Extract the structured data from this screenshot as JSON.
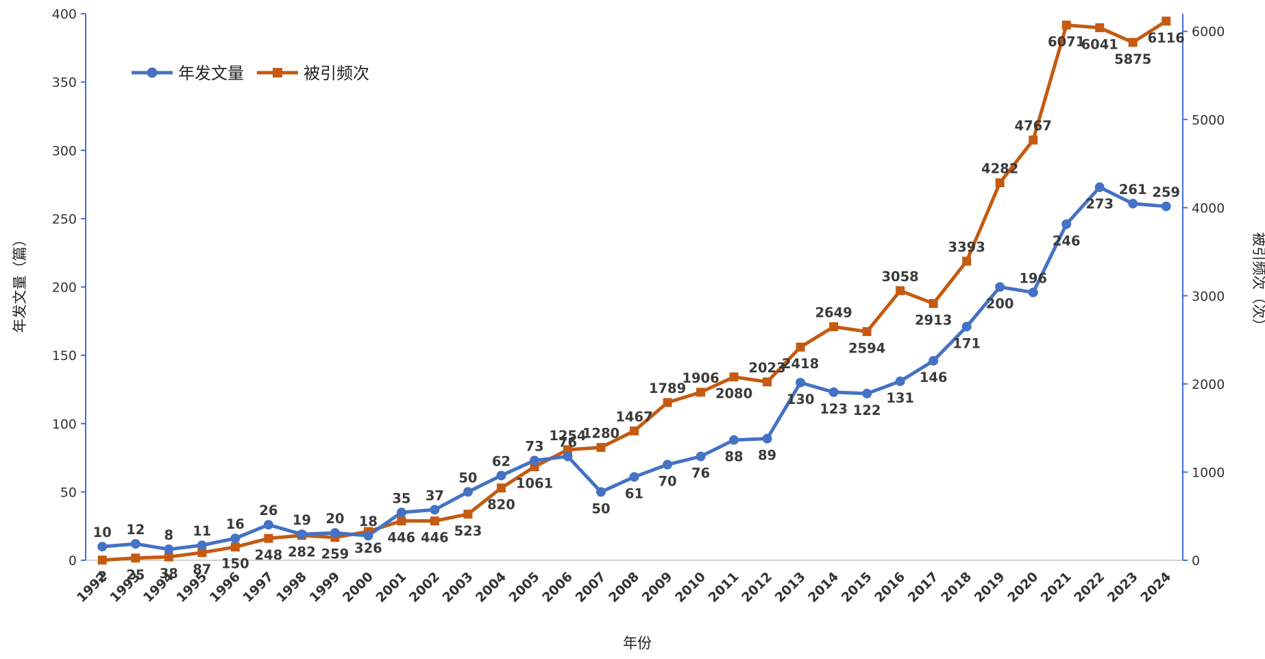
{
  "chart_data": {
    "type": "line",
    "title": "",
    "xlabel": "年份",
    "ylabel_left": "年发文量（篇）",
    "ylabel_right": "被引频次（次）",
    "ylim_left": [
      0,
      400
    ],
    "yticks_left": [
      0,
      50,
      100,
      150,
      200,
      250,
      300,
      350,
      400
    ],
    "ylim_right": [
      0,
      6200
    ],
    "yticks_right": [
      0,
      1000,
      2000,
      3000,
      4000,
      5000,
      6000
    ],
    "legend_position": "top-left",
    "categories": [
      "1992",
      "1993",
      "1994",
      "1995",
      "1996",
      "1997",
      "1998",
      "1999",
      "2000",
      "2001",
      "2002",
      "2003",
      "2004",
      "2005",
      "2006",
      "2007",
      "2008",
      "2009",
      "2010",
      "2011",
      "2012",
      "2013",
      "2014",
      "2015",
      "2016",
      "2017",
      "2018",
      "2019",
      "2020",
      "2021",
      "2022",
      "2023",
      "2024"
    ],
    "series": [
      {
        "name": "年发文量",
        "axis": "left",
        "color": "#4472c4",
        "marker": "circle",
        "values": [
          10,
          12,
          8,
          11,
          16,
          26,
          19,
          20,
          18,
          35,
          37,
          50,
          62,
          73,
          76,
          50,
          61,
          70,
          76,
          88,
          89,
          130,
          123,
          122,
          131,
          146,
          171,
          200,
          196,
          246,
          273,
          261,
          259
        ]
      },
      {
        "name": "被引频次",
        "axis": "right",
        "color": "#c55a11",
        "marker": "square",
        "values": [
          2,
          25,
          38,
          87,
          150,
          248,
          282,
          259,
          326,
          446,
          446,
          523,
          820,
          1061,
          1254,
          1280,
          1467,
          1789,
          1906,
          2080,
          2023,
          2418,
          2649,
          2594,
          3058,
          2913,
          3393,
          4282,
          4767,
          6071,
          6041,
          5875,
          6116
        ]
      }
    ]
  }
}
